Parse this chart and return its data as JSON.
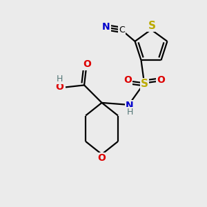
{
  "bg_color": "#ebebeb",
  "atom_colors": {
    "C": "#000000",
    "N": "#0000cc",
    "O": "#dd0000",
    "S": "#bbaa00",
    "H": "#557777"
  },
  "bond_color": "#000000",
  "bond_width": 1.6
}
